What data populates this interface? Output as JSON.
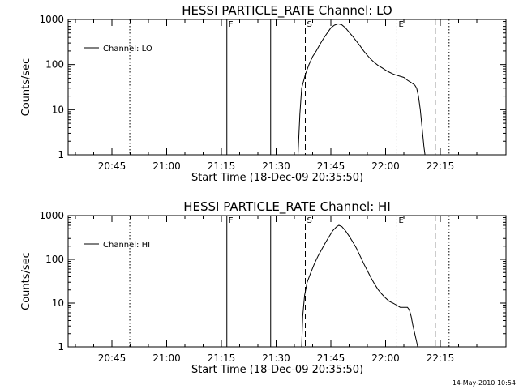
{
  "footer": {
    "date_stamp": "14-May-2010 10:54"
  },
  "chart_data": [
    {
      "type": "line",
      "title": "HESSI PARTICLE_RATE Channel: LO",
      "xlabel": "Start Time (18-Dec-09 20:35:50)",
      "ylabel": "Counts/sec",
      "yscale": "log",
      "ylim": [
        1,
        1000
      ],
      "xlim_minutes": [
        -12,
        108
      ],
      "xticks": [
        {
          "label": "20:45",
          "minute": 0
        },
        {
          "label": "21:00",
          "minute": 15
        },
        {
          "label": "21:15",
          "minute": 30
        },
        {
          "label": "21:30",
          "minute": 45
        },
        {
          "label": "21:45",
          "minute": 60
        },
        {
          "label": "22:00",
          "minute": 75
        },
        {
          "label": "22:15",
          "minute": 90
        }
      ],
      "yticks": [
        {
          "label": "1",
          "value": 1
        },
        {
          "label": "10",
          "value": 10
        },
        {
          "label": "100",
          "value": 100
        },
        {
          "label": "1000",
          "value": 1000
        }
      ],
      "legend": {
        "label": "Channel: LO",
        "position": "top-left"
      },
      "vlines": [
        {
          "minute": 4.9,
          "style": "dotted",
          "label": ""
        },
        {
          "minute": 31.5,
          "style": "solid",
          "label": "F"
        },
        {
          "minute": 43.5,
          "style": "solid",
          "label": ""
        },
        {
          "minute": 53.0,
          "style": "dashed",
          "label": "S"
        },
        {
          "minute": 78.1,
          "style": "dotted",
          "label": "E"
        },
        {
          "minute": 88.6,
          "style": "dashed",
          "label": ""
        },
        {
          "minute": 92.4,
          "style": "dotted",
          "label": ""
        }
      ],
      "series": [
        {
          "points": [
            [
              51.0,
              1
            ],
            [
              51.5,
              8
            ],
            [
              52.0,
              30
            ],
            [
              53.0,
              60
            ],
            [
              54.0,
              100
            ],
            [
              55.0,
              150
            ],
            [
              56.0,
              200
            ],
            [
              57.0,
              280
            ],
            [
              58.0,
              380
            ],
            [
              59.0,
              500
            ],
            [
              60.0,
              650
            ],
            [
              61.0,
              750
            ],
            [
              62.0,
              800
            ],
            [
              63.0,
              760
            ],
            [
              64.0,
              650
            ],
            [
              65.0,
              520
            ],
            [
              66.0,
              420
            ],
            [
              67.0,
              330
            ],
            [
              68.0,
              260
            ],
            [
              69.0,
              200
            ],
            [
              70.0,
              160
            ],
            [
              71.0,
              130
            ],
            [
              72.0,
              110
            ],
            [
              73.0,
              95
            ],
            [
              74.0,
              85
            ],
            [
              75.0,
              75
            ],
            [
              76.0,
              68
            ],
            [
              77.0,
              62
            ],
            [
              78.0,
              58
            ],
            [
              79.0,
              55
            ],
            [
              80.0,
              52
            ],
            [
              81.0,
              45
            ],
            [
              82.0,
              40
            ],
            [
              83.0,
              35
            ],
            [
              83.5,
              30
            ],
            [
              84.0,
              20
            ],
            [
              84.5,
              10
            ],
            [
              85.0,
              4
            ],
            [
              85.5,
              1.5
            ],
            [
              85.8,
              1
            ]
          ]
        }
      ]
    },
    {
      "type": "line",
      "title": "HESSI PARTICLE_RATE Channel: HI",
      "xlabel": "Start Time (18-Dec-09 20:35:50)",
      "ylabel": "Counts/sec",
      "yscale": "log",
      "ylim": [
        1,
        1000
      ],
      "xlim_minutes": [
        -12,
        108
      ],
      "xticks": [
        {
          "label": "20:45",
          "minute": 0
        },
        {
          "label": "21:00",
          "minute": 15
        },
        {
          "label": "21:15",
          "minute": 30
        },
        {
          "label": "21:30",
          "minute": 45
        },
        {
          "label": "21:45",
          "minute": 60
        },
        {
          "label": "22:00",
          "minute": 75
        },
        {
          "label": "22:15",
          "minute": 90
        }
      ],
      "yticks": [
        {
          "label": "1",
          "value": 1
        },
        {
          "label": "10",
          "value": 10
        },
        {
          "label": "100",
          "value": 100
        },
        {
          "label": "1000",
          "value": 1000
        }
      ],
      "legend": {
        "label": "Channel: HI",
        "position": "top-left"
      },
      "vlines": [
        {
          "minute": 4.9,
          "style": "dotted",
          "label": ""
        },
        {
          "minute": 31.5,
          "style": "solid",
          "label": "F"
        },
        {
          "minute": 43.5,
          "style": "solid",
          "label": ""
        },
        {
          "minute": 53.0,
          "style": "dashed",
          "label": "S"
        },
        {
          "minute": 78.1,
          "style": "dotted",
          "label": "E"
        },
        {
          "minute": 88.6,
          "style": "dashed",
          "label": ""
        },
        {
          "minute": 92.4,
          "style": "dotted",
          "label": ""
        }
      ],
      "series": [
        {
          "points": [
            [
              52.0,
              1
            ],
            [
              52.3,
              5
            ],
            [
              52.8,
              15
            ],
            [
              53.5,
              30
            ],
            [
              54.5,
              50
            ],
            [
              55.5,
              80
            ],
            [
              56.5,
              120
            ],
            [
              57.5,
              170
            ],
            [
              58.5,
              240
            ],
            [
              59.5,
              330
            ],
            [
              60.5,
              450
            ],
            [
              61.5,
              550
            ],
            [
              62.2,
              600
            ],
            [
              63.0,
              560
            ],
            [
              64.0,
              450
            ],
            [
              65.0,
              340
            ],
            [
              66.0,
              250
            ],
            [
              67.0,
              180
            ],
            [
              68.0,
              120
            ],
            [
              69.0,
              80
            ],
            [
              70.0,
              55
            ],
            [
              71.0,
              38
            ],
            [
              72.0,
              27
            ],
            [
              73.0,
              20
            ],
            [
              74.0,
              16
            ],
            [
              75.0,
              13
            ],
            [
              76.0,
              11
            ],
            [
              77.0,
              10
            ],
            [
              78.0,
              9
            ],
            [
              79.0,
              8
            ],
            [
              80.0,
              8
            ],
            [
              81.0,
              8
            ],
            [
              81.5,
              7
            ],
            [
              82.0,
              5
            ],
            [
              82.5,
              3
            ],
            [
              83.0,
              2
            ],
            [
              83.5,
              1.3
            ],
            [
              83.8,
              1
            ]
          ]
        }
      ]
    }
  ]
}
